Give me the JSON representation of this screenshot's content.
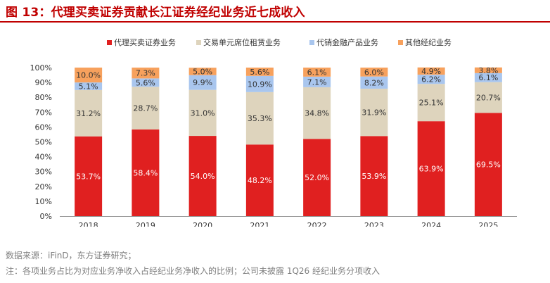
{
  "title": "图 13：代理买卖证券贡献长江证券经纪业务近七成收入",
  "colors": {
    "title": "#c00000",
    "series": [
      "#e02020",
      "#ded4bd",
      "#a9c6ee",
      "#f7a15d"
    ]
  },
  "source_lines": [
    "数据来源：iFinD，东方证券研究；",
    "注：各项业务占比为对应业务净收入占经纪业务净收入的比例；公司未披露 1Q26 经纪业务分项收入"
  ],
  "chart_data": {
    "type": "bar",
    "stacked": true,
    "categories": [
      "2018",
      "2019",
      "2020",
      "2021",
      "2022",
      "2023",
      "2024",
      "2025"
    ],
    "series": [
      {
        "name": "代理买卖证券业务",
        "values": [
          53.7,
          58.4,
          54.0,
          48.2,
          52.0,
          53.9,
          63.9,
          69.5
        ],
        "labels": [
          "53.7%",
          "58.4%",
          "54.0%",
          "48.2%",
          "52.0%",
          "53.9%",
          "63.9%",
          "69.5%"
        ]
      },
      {
        "name": "交易单元席位租赁业务",
        "values": [
          31.2,
          28.7,
          31.0,
          35.3,
          34.8,
          31.9,
          25.1,
          20.7
        ],
        "labels": [
          "31.2%",
          "28.7%",
          "31.0%",
          "35.3%",
          "34.8%",
          "31.9%",
          "25.1%",
          "20.7%"
        ]
      },
      {
        "name": "代销金融产品业务",
        "values": [
          5.1,
          5.6,
          9.9,
          10.9,
          7.1,
          8.2,
          6.2,
          6.1
        ],
        "labels": [
          "5.1%",
          "5.6%",
          "9.9%",
          "10.9%",
          "7.1%",
          "8.2%",
          "6.2%",
          "6.1%"
        ]
      },
      {
        "name": "其他经纪业务",
        "values": [
          10.0,
          7.3,
          5.0,
          5.6,
          6.1,
          6.0,
          4.9,
          3.8
        ],
        "labels": [
          "10.0%",
          "7.3%",
          "5.0%",
          "5.6%",
          "6.1%",
          "6.0%",
          "4.9%",
          "3.8%"
        ]
      }
    ],
    "yticks": [
      "0%",
      "10%",
      "20%",
      "30%",
      "40%",
      "50%",
      "60%",
      "70%",
      "80%",
      "90%",
      "100%"
    ],
    "ylim": [
      0,
      100
    ],
    "grid": false,
    "legend": "top"
  }
}
